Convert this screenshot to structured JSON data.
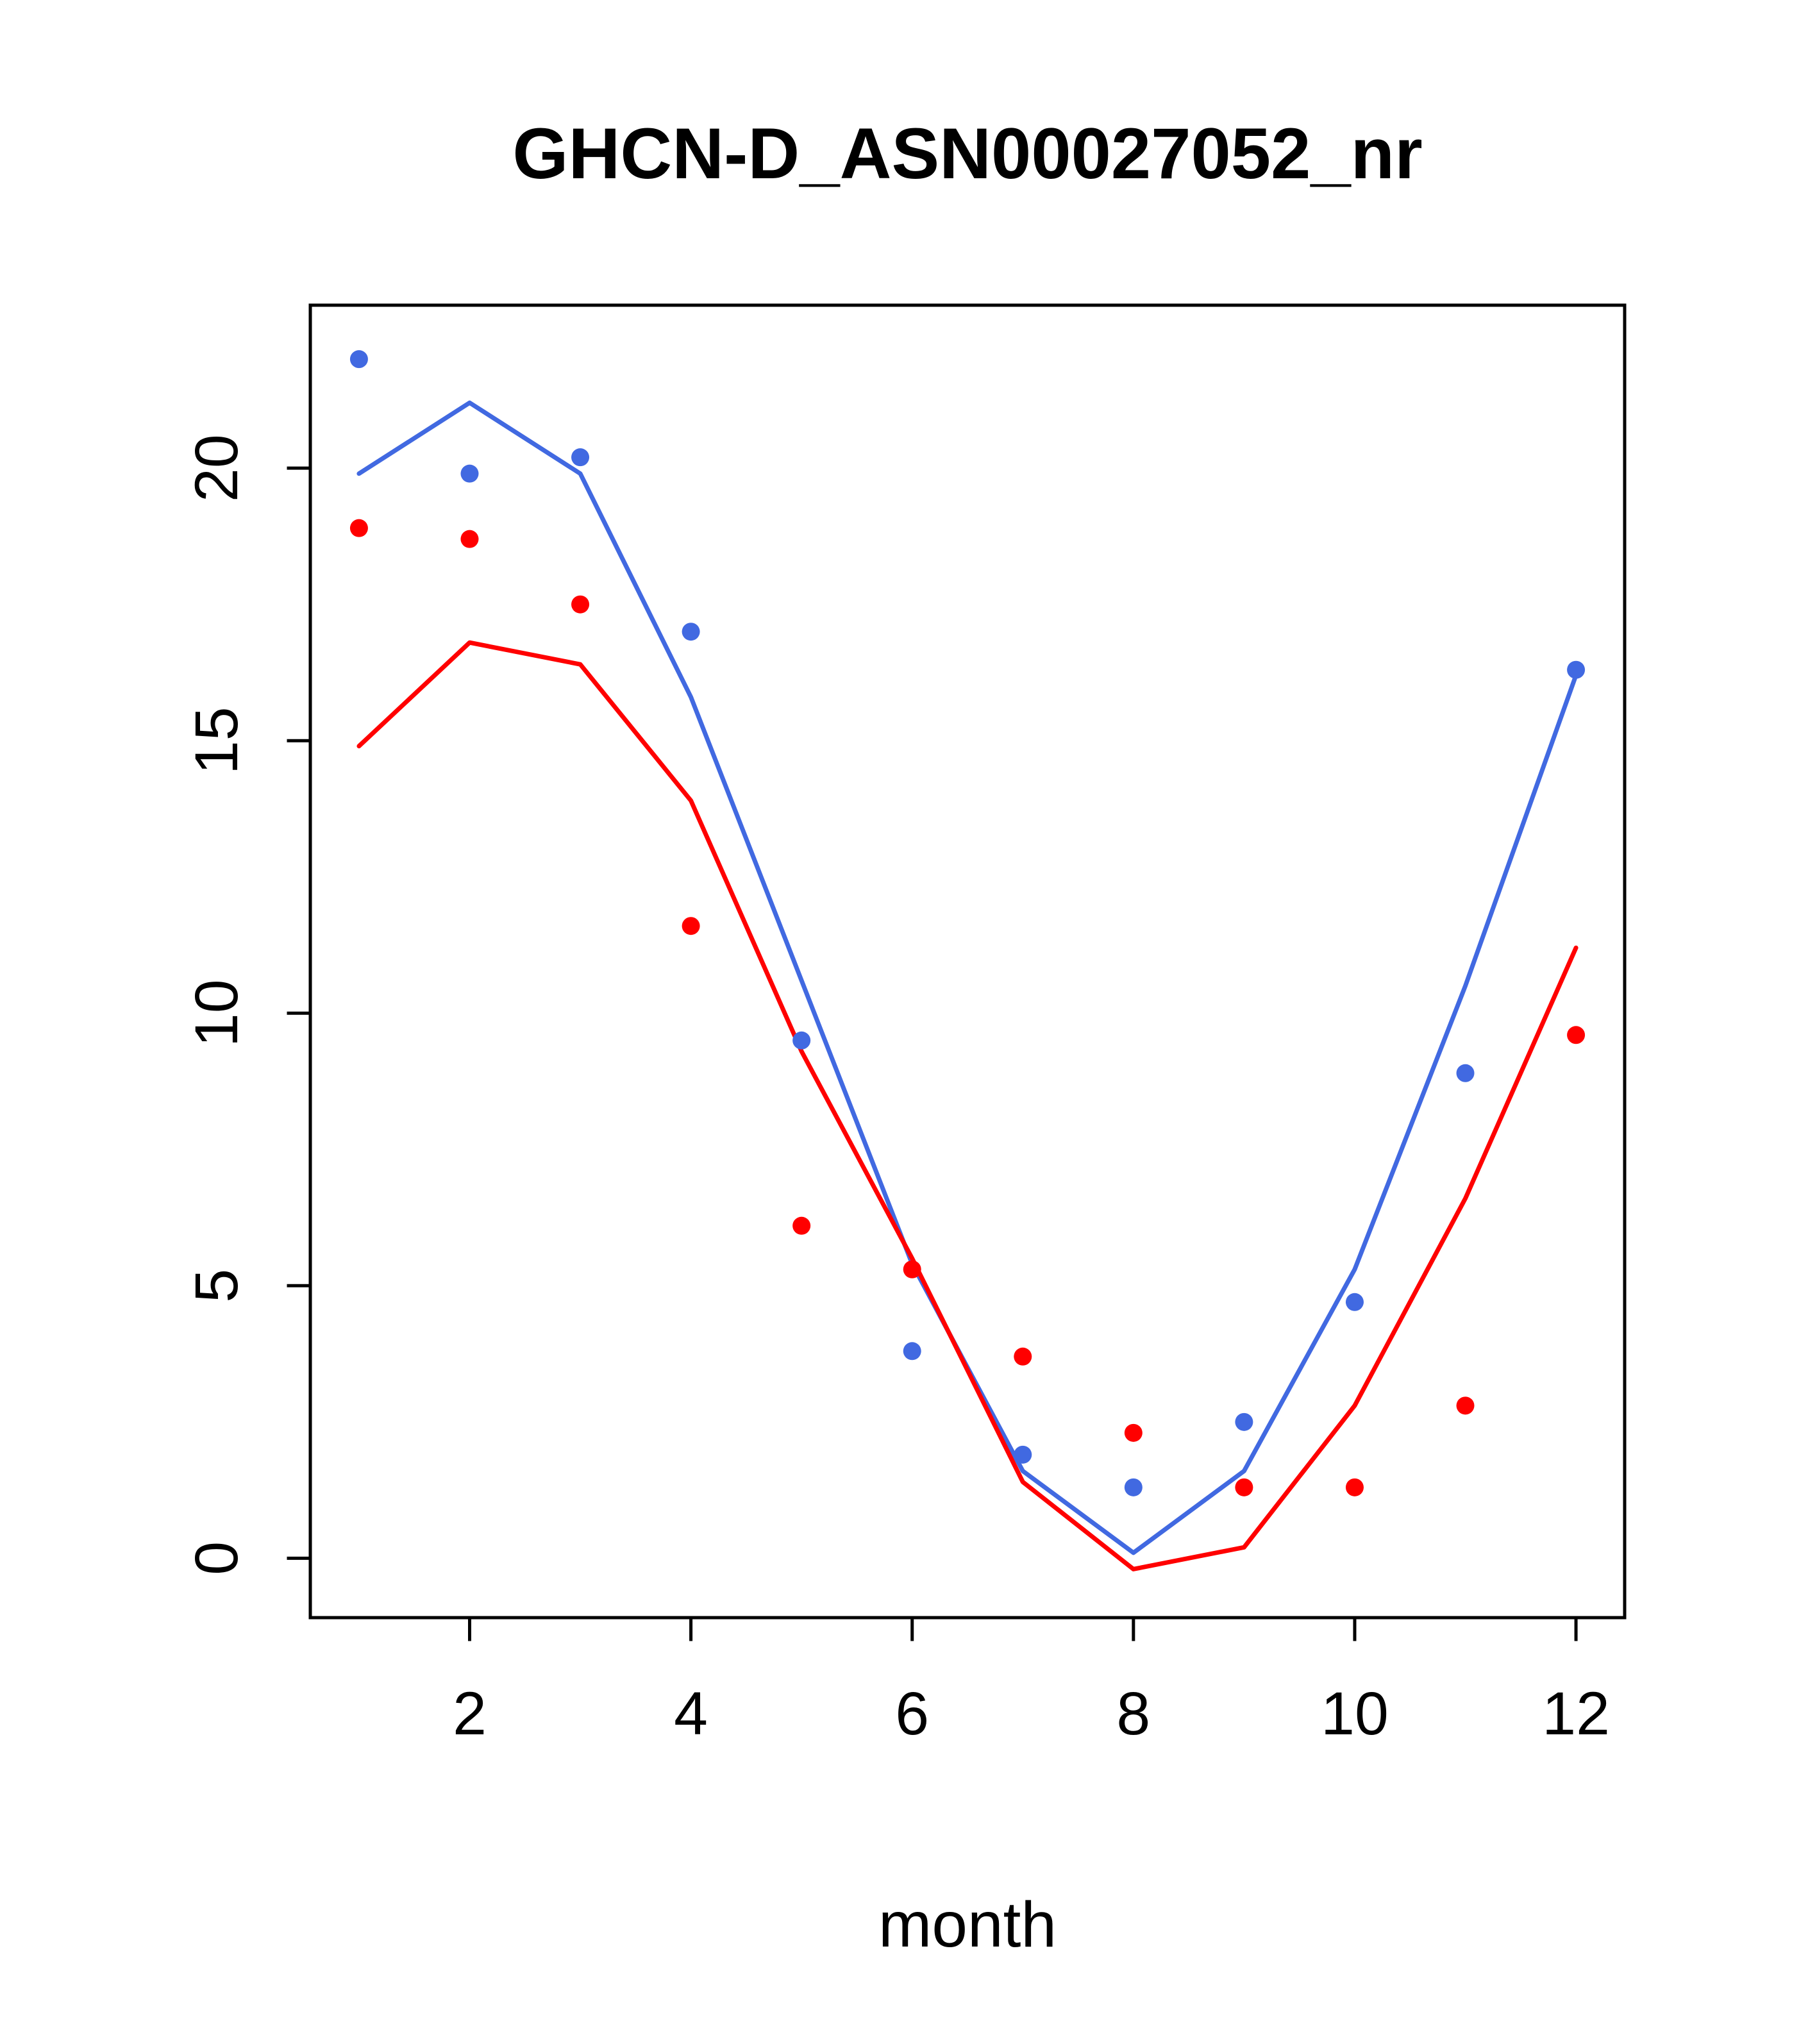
{
  "title": "GHCN-D_ASN00027052_nr",
  "chart_data": {
    "type": "scatter",
    "title": "GHCN-D_ASN00027052_nr",
    "xlabel": "month",
    "ylabel": "",
    "xlim": [
      0.56,
      12.44
    ],
    "ylim": [
      -1.09,
      22.99
    ],
    "xticks": [
      2,
      4,
      6,
      8,
      10,
      12
    ],
    "yticks": [
      0,
      5,
      10,
      15,
      20
    ],
    "grid": false,
    "legend": null,
    "x": [
      1,
      2,
      3,
      4,
      5,
      6,
      7,
      8,
      9,
      10,
      11,
      12
    ],
    "colors": {
      "blue": "#4169E1",
      "red": "#FF0000"
    },
    "series": [
      {
        "name": "blue-points",
        "kind": "points",
        "color": "#4169E1",
        "values": [
          22.0,
          19.9,
          20.2,
          17.0,
          9.5,
          3.8,
          1.9,
          1.3,
          2.5,
          4.7,
          8.9,
          16.3
        ]
      },
      {
        "name": "red-points",
        "kind": "points",
        "color": "#FF0000",
        "values": [
          18.9,
          18.7,
          17.5,
          11.6,
          6.1,
          5.3,
          3.7,
          2.3,
          1.3,
          1.3,
          2.8,
          9.6
        ]
      },
      {
        "name": "blue-line",
        "kind": "line",
        "color": "#4169E1",
        "values": [
          19.9,
          21.2,
          19.9,
          15.8,
          10.6,
          5.4,
          1.6,
          0.1,
          1.6,
          5.3,
          10.5,
          16.2
        ]
      },
      {
        "name": "red-line",
        "kind": "line",
        "color": "#FF0000",
        "values": [
          14.9,
          16.8,
          16.4,
          13.9,
          9.3,
          5.5,
          1.4,
          -0.2,
          0.2,
          2.8,
          6.6,
          11.2
        ]
      }
    ]
  }
}
